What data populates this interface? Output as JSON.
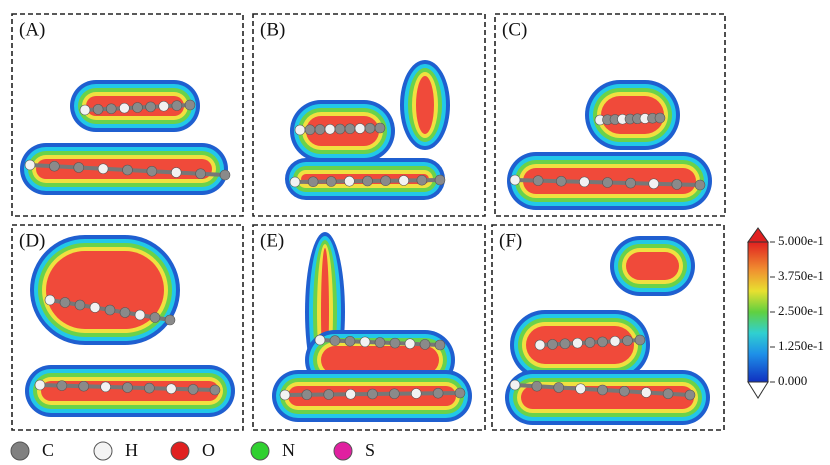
{
  "panels": [
    {
      "label": "(A)"
    },
    {
      "label": "(B)"
    },
    {
      "label": "(C)"
    },
    {
      "label": "(D)"
    },
    {
      "label": "(E)"
    },
    {
      "label": "(F)"
    }
  ],
  "colorbar": {
    "ticks": [
      "5.000e-1",
      "3.750e-1",
      "2.500e-1",
      "1.250e-1",
      "0.000"
    ]
  },
  "legend": [
    {
      "label": "C"
    },
    {
      "label": "H"
    },
    {
      "label": "O"
    },
    {
      "label": "N"
    },
    {
      "label": "S"
    }
  ]
}
